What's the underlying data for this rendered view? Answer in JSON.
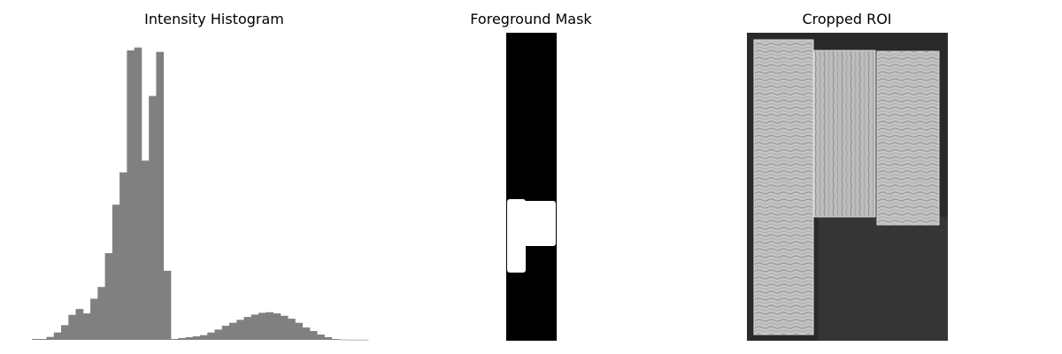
{
  "panels": {
    "histogram": {
      "title": "Intensity Histogram"
    },
    "mask": {
      "title": "Foreground Mask"
    },
    "roi": {
      "title": "Cropped ROI"
    }
  },
  "colors": {
    "bar": "#808080",
    "mask_background": "#000000",
    "mask_foreground": "#ffffff",
    "roi_background": "#2a2a2a",
    "wood": "#c8c8c8"
  },
  "chart_data": {
    "type": "bar",
    "title": "Intensity Histogram",
    "xlabel": "",
    "ylabel": "",
    "axes_visible": false,
    "grid": false,
    "ylim": [
      0,
      1
    ],
    "values": [
      0.003,
      0.003,
      0.01,
      0.025,
      0.05,
      0.085,
      0.105,
      0.09,
      0.14,
      0.18,
      0.295,
      0.46,
      0.57,
      0.985,
      0.995,
      0.61,
      0.83,
      0.98,
      0.235,
      0.003,
      0.006,
      0.009,
      0.012,
      0.016,
      0.025,
      0.035,
      0.048,
      0.058,
      0.068,
      0.078,
      0.086,
      0.092,
      0.094,
      0.09,
      0.082,
      0.072,
      0.058,
      0.042,
      0.03,
      0.018,
      0.009,
      0.003,
      0.001,
      0.0005,
      0.0005,
      0.0005
    ]
  }
}
